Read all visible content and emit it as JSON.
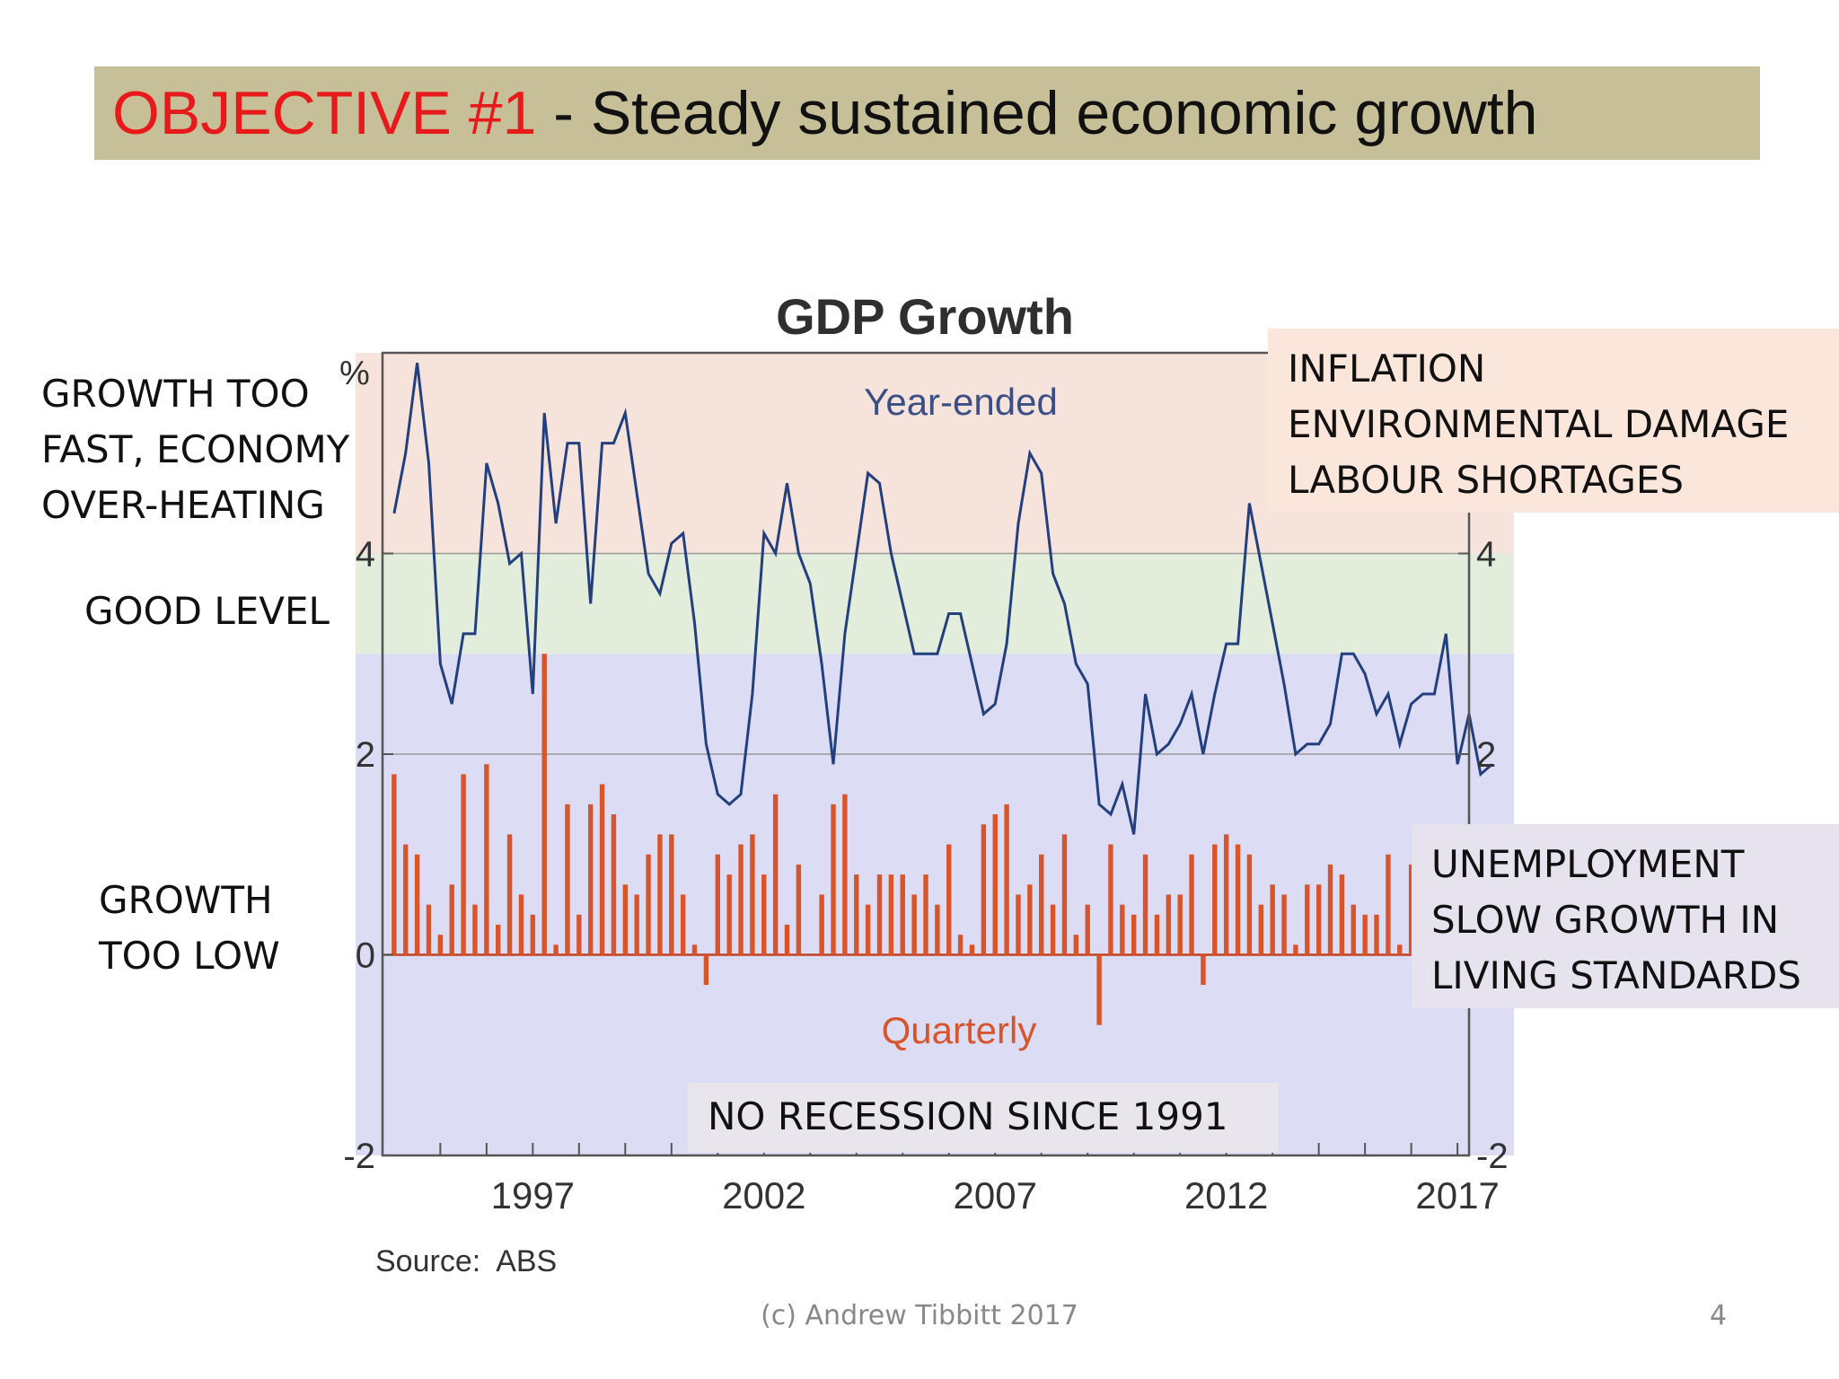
{
  "header": {
    "accent": "OBJECTIVE #1",
    "rest": " - Steady sustained economic growth"
  },
  "labels": {
    "too_fast": "GROWTH TOO\nFAST, ECONOMY\nOVER-HEATING",
    "good": "GOOD LEVEL",
    "too_low": "GROWTH\nTOO LOW",
    "upper_box": "INFLATION\nENVIRONMENTAL DAMAGE\nLABOUR SHORTAGES",
    "lower_box": "UNEMPLOYMENT\nSLOW GROWTH IN\nLIVING STANDARDS",
    "recession": "NO RECESSION SINCE 1991"
  },
  "footer": {
    "credit": "(c) Andrew Tibbitt 2017",
    "page": "4"
  },
  "colors": {
    "header_band": "#c6bf97",
    "accent": "#e8191b",
    "zone_high": "#f6e3dc",
    "zone_good": "#e2eddb",
    "zone_low": "#dcdcf4",
    "year_ended_line": "#233f7e",
    "quarterly_bar": "#d8542b"
  },
  "chart_data": {
    "type": "bar+line",
    "title": "GDP Growth",
    "unit_label": "%",
    "source": "Source:  ABS",
    "series_labels": {
      "year_ended": "Year-ended",
      "quarterly": "Quarterly"
    },
    "x_range": [
      1993.75,
      2017.25
    ],
    "ylim": [
      -2,
      6
    ],
    "y_ticks": [
      -2,
      0,
      2,
      4
    ],
    "x_ticks": [
      "1997",
      "2002",
      "2007",
      "2012",
      "2017"
    ],
    "x_tick_values": [
      1997,
      2002,
      2007,
      2012,
      2017
    ],
    "zones": [
      {
        "name": "over-heating",
        "from": 4,
        "to": 6
      },
      {
        "name": "good",
        "from": 3,
        "to": 4
      },
      {
        "name": "too-low",
        "from": -2,
        "to": 3
      }
    ],
    "series": [
      {
        "name": "Year-ended",
        "type": "line",
        "x_start": 1994.0,
        "x_step": 0.25,
        "values": [
          4.4,
          5.0,
          5.9,
          4.9,
          2.9,
          2.5,
          3.2,
          3.2,
          4.9,
          4.5,
          3.9,
          4.0,
          2.6,
          5.4,
          4.3,
          5.1,
          5.1,
          3.5,
          5.1,
          5.1,
          5.4,
          4.6,
          3.8,
          3.6,
          4.1,
          4.2,
          3.3,
          2.1,
          1.6,
          1.5,
          1.6,
          2.6,
          4.2,
          4.0,
          4.7,
          4.0,
          3.7,
          2.9,
          1.9,
          3.2,
          4.0,
          4.8,
          4.7,
          4.0,
          3.5,
          3.0,
          3.0,
          3.0,
          3.4,
          3.4,
          2.9,
          2.4,
          2.5,
          3.1,
          4.3,
          5.0,
          4.8,
          3.8,
          3.5,
          2.9,
          2.7,
          1.5,
          1.4,
          1.7,
          1.2,
          2.6,
          2.0,
          2.1,
          2.3,
          2.6,
          2.0,
          2.6,
          3.1,
          3.1,
          4.5,
          3.9,
          3.3,
          2.7,
          2.0,
          2.1,
          2.1,
          2.3,
          3.0,
          3.0,
          2.8,
          2.4,
          2.6,
          2.1,
          2.5,
          2.6,
          2.6,
          3.2,
          1.9,
          2.4,
          1.8,
          1.9
        ]
      },
      {
        "name": "Quarterly",
        "type": "bar",
        "x_start": 1994.0,
        "x_step": 0.25,
        "values": [
          1.8,
          1.1,
          1.0,
          0.5,
          0.2,
          0.7,
          1.8,
          0.5,
          1.9,
          0.3,
          1.2,
          0.6,
          0.4,
          3.0,
          0.1,
          1.5,
          0.4,
          1.5,
          1.7,
          1.4,
          0.7,
          0.6,
          1.0,
          1.2,
          1.2,
          0.6,
          0.1,
          -0.3,
          1.0,
          0.8,
          1.1,
          1.2,
          0.8,
          1.6,
          0.3,
          0.9,
          0.0,
          0.6,
          1.5,
          1.6,
          0.8,
          0.5,
          0.8,
          0.8,
          0.8,
          0.6,
          0.8,
          0.5,
          1.1,
          0.2,
          0.1,
          1.3,
          1.4,
          1.5,
          0.6,
          0.7,
          1.0,
          0.5,
          1.2,
          0.2,
          0.5,
          -0.7,
          1.1,
          0.5,
          0.4,
          1.0,
          0.4,
          0.6,
          0.6,
          1.0,
          -0.3,
          1.1,
          1.2,
          1.1,
          1.0,
          0.5,
          0.7,
          0.6,
          0.1,
          0.7,
          0.7,
          0.9,
          0.8,
          0.5,
          0.4,
          0.4,
          1.0,
          0.1,
          0.9,
          0.6,
          1.0,
          0.8,
          -0.4,
          1.1,
          0.3,
          0.4
        ]
      }
    ]
  }
}
